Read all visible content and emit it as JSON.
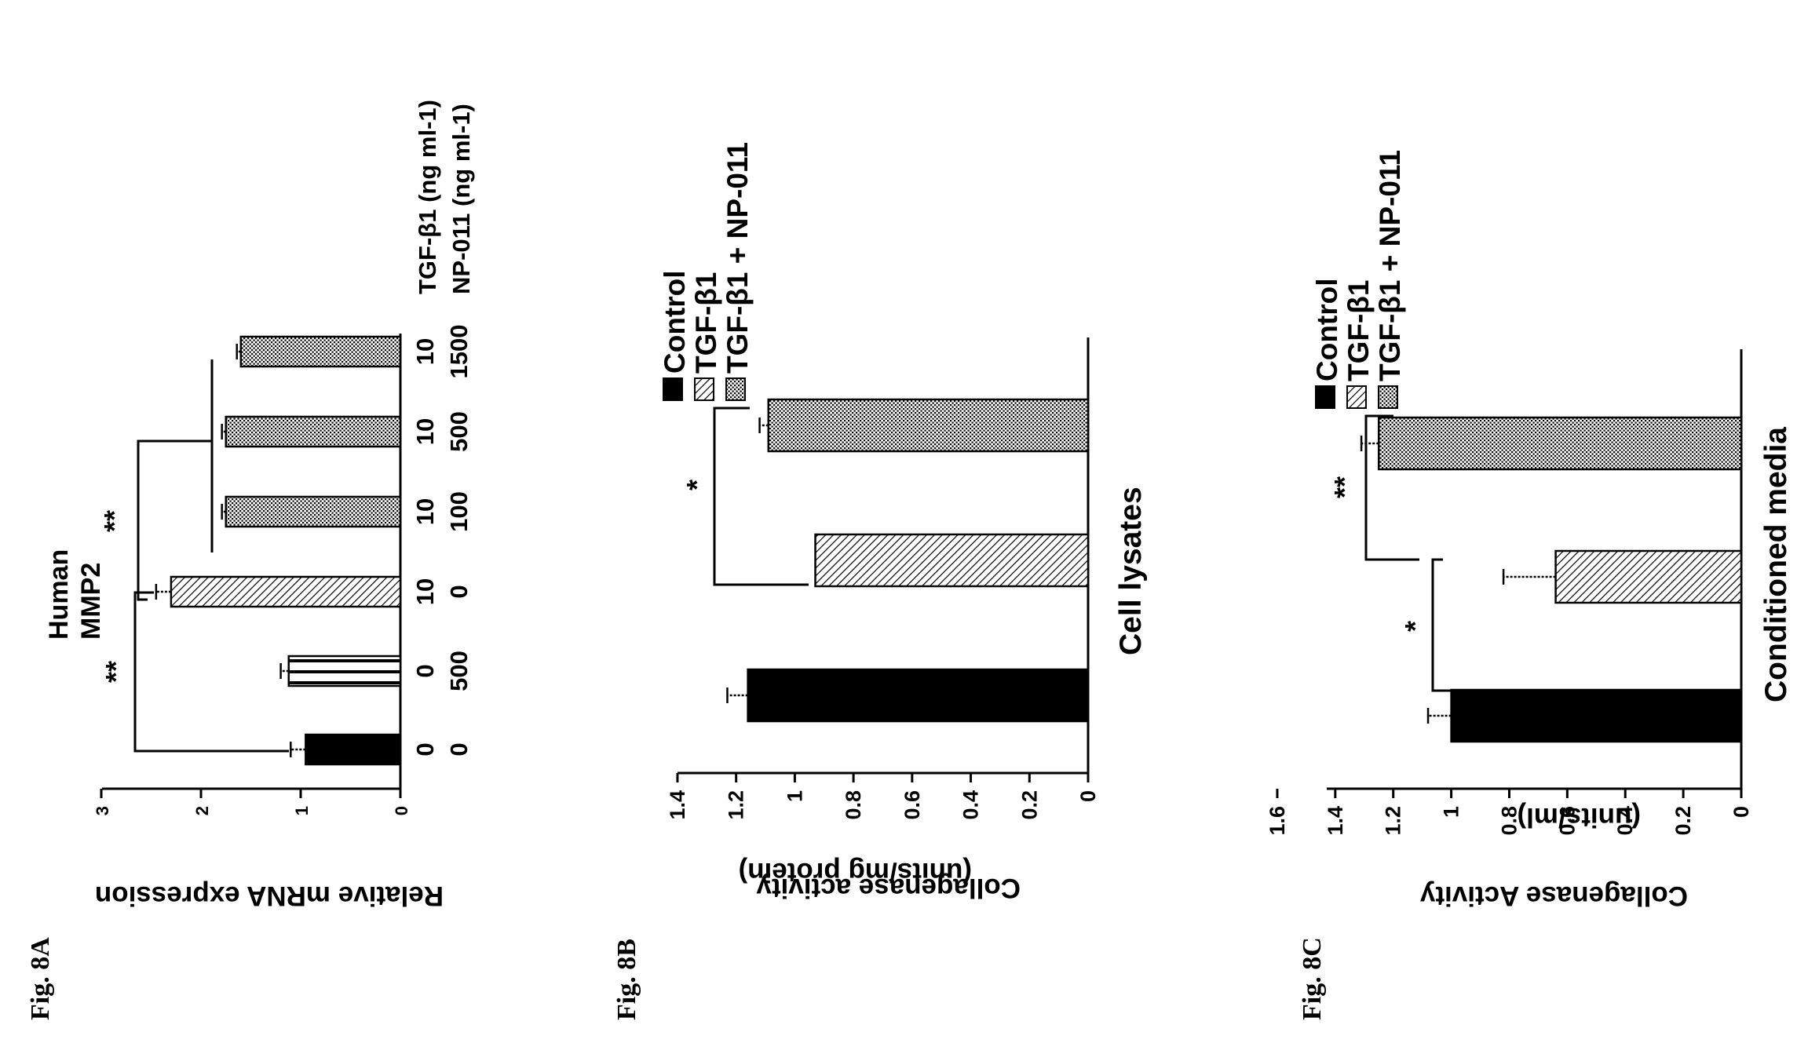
{
  "colors": {
    "ink": "#000000",
    "background": "#ffffff"
  },
  "chart_data": [
    {
      "figure_label": "Fig. 8A",
      "type": "bar",
      "panel_title": [
        "Human",
        "MMP2"
      ],
      "ylabel": "Relative mRNA expression",
      "ylim": [
        0,
        3
      ],
      "y_ticks": [
        "0",
        "1",
        "2",
        "3"
      ],
      "row_labels": [
        "TGF-β1 (ng ml-1)",
        "NP-011 (ng ml-1)"
      ],
      "categories": [
        {
          "tgf": "0",
          "np": "0"
        },
        {
          "tgf": "0",
          "np": "500"
        },
        {
          "tgf": "10",
          "np": "0"
        },
        {
          "tgf": "10",
          "np": "100"
        },
        {
          "tgf": "10",
          "np": "500"
        },
        {
          "tgf": "10",
          "np": "1500"
        }
      ],
      "values": [
        0.95,
        1.12,
        2.3,
        1.75,
        1.75,
        1.6
      ],
      "errors": [
        0.15,
        0.08,
        0.15,
        0.04,
        0.04,
        0.04
      ],
      "patterns": [
        "solid",
        "hstripe",
        "diag",
        "dots",
        "dots",
        "dots"
      ],
      "annotations": [
        "**",
        "**"
      ]
    },
    {
      "figure_label": "Fig. 8B",
      "type": "bar",
      "ylabel": "Collagenase activity",
      "ylabel2": "(units/mg protein)",
      "ylim": [
        0,
        1.4
      ],
      "y_ticks": [
        "0",
        "0.2",
        "0.4",
        "0.6",
        "0.8",
        "1",
        "1.2",
        "1.4"
      ],
      "xlabel": "Cell lysates",
      "legend": [
        "Control",
        "TGF-β1",
        "TGF-β1 + NP-011"
      ],
      "categories": [
        "Control",
        "TGF-β1",
        "TGF-β1 + NP-011"
      ],
      "values": [
        1.16,
        0.93,
        1.09
      ],
      "errors": [
        0.07,
        0.0,
        0.03
      ],
      "patterns": [
        "solid",
        "diag",
        "dots"
      ],
      "annotations": [
        "*"
      ]
    },
    {
      "figure_label": "Fig. 8C",
      "type": "bar",
      "ylabel": "Collagenase Activity",
      "ylabel2": "(units/ml)",
      "ylim": [
        0,
        1.6
      ],
      "y_ticks": [
        "0",
        "0.2",
        "0.4",
        "0.6",
        "0.8",
        "1",
        "1.2",
        "1.4",
        "1.6"
      ],
      "xlabel": "Conditioned media",
      "legend": [
        "Control",
        "TGF-β1",
        "TGF-β1 + NP-011"
      ],
      "categories": [
        "Control",
        "TGF-β1",
        "TGF-β1 + NP-011"
      ],
      "values": [
        1.0,
        0.64,
        1.25
      ],
      "errors": [
        0.08,
        0.18,
        0.06
      ],
      "patterns": [
        "solid",
        "diag",
        "dots"
      ],
      "annotations": [
        "*",
        "**"
      ]
    }
  ]
}
